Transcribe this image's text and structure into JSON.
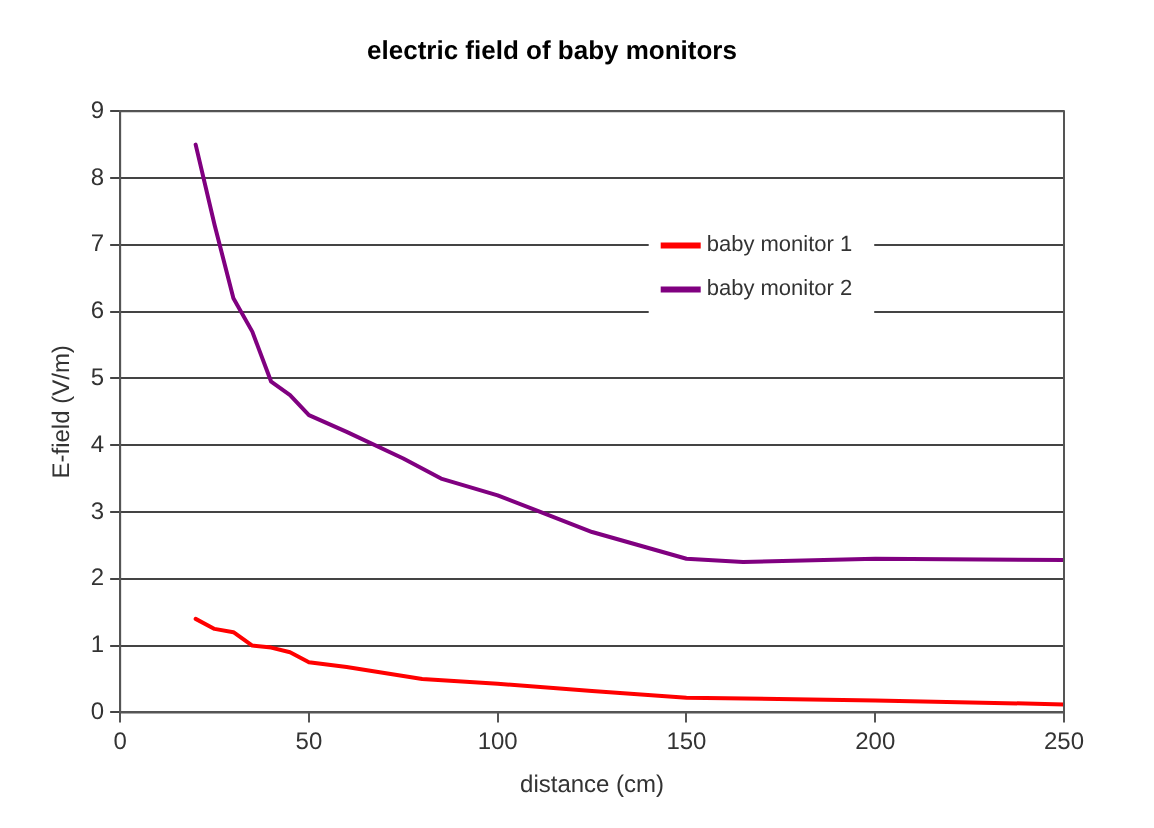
{
  "chart_data": {
    "type": "line",
    "title": "electric field of baby monitors",
    "xlabel": "distance (cm)",
    "ylabel": "E-field (V/m)",
    "xlim": [
      0,
      250
    ],
    "xticks": [
      0,
      50,
      100,
      150,
      200,
      250
    ],
    "ylim": [
      0,
      9
    ],
    "yticks": [
      0,
      1,
      2,
      3,
      4,
      5,
      6,
      7,
      8,
      9
    ],
    "grid": "y",
    "legend": "top right",
    "marker": "none",
    "series": [
      {
        "name": "baby monitor 1",
        "color": "#ff0000",
        "x": [
          20,
          25,
          30,
          35,
          40,
          45,
          50,
          60,
          80,
          100,
          125,
          150,
          200,
          250
        ],
        "values": [
          1.4,
          1.25,
          1.2,
          1.0,
          0.97,
          0.9,
          0.75,
          0.68,
          0.5,
          0.43,
          0.32,
          0.22,
          0.18,
          0.12
        ]
      },
      {
        "name": "baby monitor 2",
        "color": "#800080",
        "x": [
          20,
          25,
          30,
          35,
          40,
          45,
          50,
          60,
          75,
          85,
          100,
          125,
          150,
          165,
          200,
          250
        ],
        "values": [
          8.5,
          7.3,
          6.2,
          5.7,
          4.95,
          4.75,
          4.45,
          4.2,
          3.8,
          3.5,
          3.25,
          2.7,
          2.3,
          2.25,
          2.3,
          2.28
        ]
      }
    ]
  }
}
